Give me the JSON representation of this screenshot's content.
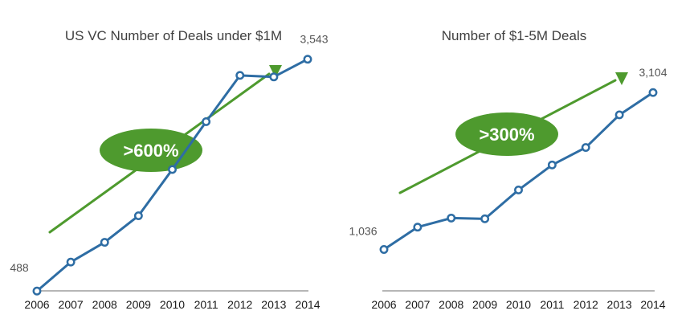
{
  "colors": {
    "series": "#2e6da4",
    "accent": "#4e9a2e",
    "axis": "#8a8a8a",
    "marker_fill": "#ffffff"
  },
  "chart_data": [
    {
      "type": "line",
      "title": "US VC Number of Deals under $1M",
      "categories": [
        "2006",
        "2007",
        "2008",
        "2009",
        "2010",
        "2011",
        "2012",
        "2013",
        "2014"
      ],
      "series": [
        {
          "name": "Deals under $1M",
          "values": [
            488,
            870,
            1130,
            1480,
            2090,
            2720,
            3330,
            3310,
            3543
          ]
        }
      ],
      "ylim": [
        300,
        3900
      ],
      "data_labels": [
        {
          "index": 0,
          "text": "488"
        },
        {
          "index": 8,
          "text": "3,543"
        }
      ],
      "annotation": {
        "text": ">600%",
        "arrow_direction": "up"
      },
      "xlabel": "",
      "ylabel": ""
    },
    {
      "type": "line",
      "title": "Number of $1-5M Deals",
      "categories": [
        "2006",
        "2007",
        "2008",
        "2009",
        "2010",
        "2011",
        "2012",
        "2013",
        "2014"
      ],
      "series": [
        {
          "name": "$1-5M Deals",
          "values": [
            1036,
            1330,
            1450,
            1440,
            1820,
            2150,
            2380,
            2810,
            3104
          ]
        }
      ],
      "ylim": [
        300,
        3900
      ],
      "data_labels": [
        {
          "index": 0,
          "text": "1,036"
        },
        {
          "index": 8,
          "text": "3,104"
        }
      ],
      "annotation": {
        "text": ">300%",
        "arrow_direction": "up"
      },
      "xlabel": "",
      "ylabel": ""
    }
  ]
}
